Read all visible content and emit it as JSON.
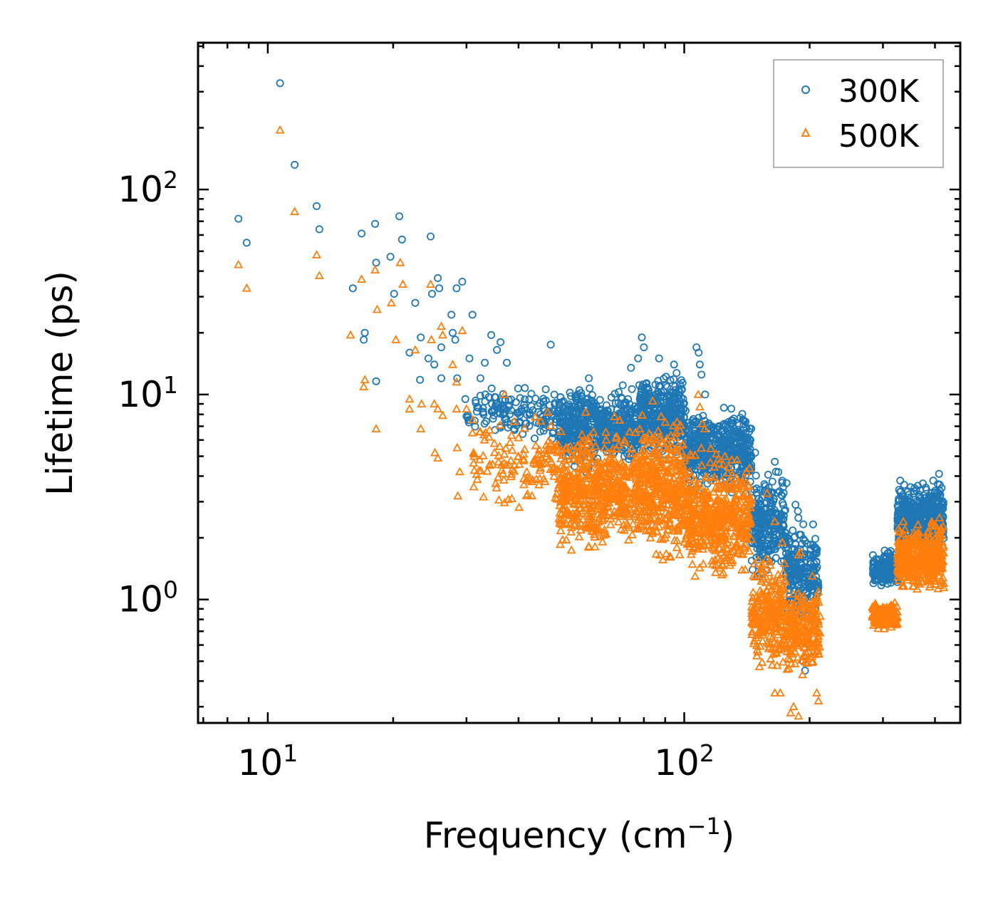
{
  "chart_data": {
    "type": "scatter",
    "title": "",
    "xlabel": "Frequency (cm⁻¹)",
    "ylabel": "Lifetime (ps)",
    "xscale": "log",
    "yscale": "log",
    "xlim": [
      6.8,
      460
    ],
    "ylim": [
      0.25,
      520
    ],
    "xticks": [
      {
        "value": 10,
        "base": "10",
        "exp": "1"
      },
      {
        "value": 100,
        "base": "10",
        "exp": "2"
      }
    ],
    "yticks": [
      {
        "value": 1,
        "base": "10",
        "exp": "0"
      },
      {
        "value": 10,
        "base": "10",
        "exp": "1"
      },
      {
        "value": 100,
        "base": "10",
        "exp": "2"
      }
    ],
    "legend": {
      "position": "top-right"
    },
    "colors": {
      "300K": "#1f77b4",
      "500K": "#ff7f0e"
    },
    "series": [
      {
        "name": "300K",
        "marker": "circle",
        "color": "#1f77b4",
        "points": [
          [
            8.5,
            72
          ],
          [
            8.9,
            55
          ],
          [
            10.7,
            330
          ],
          [
            11.6,
            132
          ],
          [
            13.1,
            83
          ],
          [
            13.3,
            64
          ],
          [
            16,
            33
          ],
          [
            16.8,
            61
          ],
          [
            17.1,
            20
          ],
          [
            17,
            18.5
          ],
          [
            18.2,
            11.6
          ],
          [
            18.1,
            68
          ],
          [
            18.2,
            44
          ],
          [
            19.7,
            47
          ],
          [
            20.1,
            31
          ],
          [
            20.7,
            74
          ],
          [
            21,
            57
          ],
          [
            21.9,
            16
          ],
          [
            22.6,
            28
          ],
          [
            23.3,
            19
          ],
          [
            23.2,
            11.8
          ],
          [
            24.3,
            15
          ],
          [
            24.6,
            59
          ],
          [
            24.8,
            31
          ],
          [
            25.1,
            14
          ],
          [
            25.6,
            37
          ],
          [
            25.8,
            33
          ],
          [
            26.1,
            12
          ],
          [
            26.1,
            17
          ],
          [
            27.6,
            24.5
          ],
          [
            27.8,
            20
          ],
          [
            28.2,
            18.5
          ],
          [
            28.5,
            12
          ],
          [
            28.4,
            33
          ],
          [
            29.3,
            35.5
          ],
          [
            29.8,
            9.5
          ],
          [
            30.5,
            15
          ],
          [
            31,
            24.5
          ],
          [
            31.6,
            9.1
          ],
          [
            32.4,
            12
          ],
          [
            33.2,
            14.3
          ],
          [
            34.4,
            19.5
          ],
          [
            35.5,
            16.5
          ],
          [
            36.2,
            18
          ],
          [
            37.5,
            14.3
          ]
        ],
        "clusters": [
          {
            "x": [
              30,
              50
            ],
            "y": [
              5.5,
              12
            ],
            "n": 140
          },
          {
            "x": [
              50,
              78
            ],
            "y": [
              4,
              12
            ],
            "n": 520
          },
          {
            "x": [
              78,
              100
            ],
            "y": [
              4.5,
              14
            ],
            "n": 380
          },
          {
            "x": [
              100,
              145
            ],
            "y": [
              3,
              9.5
            ],
            "n": 480
          },
          {
            "x": [
              145,
              175
            ],
            "y": [
              1.2,
              4.5
            ],
            "n": 230
          },
          {
            "x": [
              175,
              210
            ],
            "y": [
              0.7,
              2.5
            ],
            "n": 230
          },
          {
            "x": [
              283,
              325
            ],
            "y": [
              1.1,
              1.8
            ],
            "n": 180
          },
          {
            "x": [
              325,
              420
            ],
            "y": [
              1.6,
              4
            ],
            "n": 420
          }
        ],
        "extra_points": [
          [
            47.8,
            17.5
          ],
          [
            56,
            10.5
          ],
          [
            59,
            12
          ],
          [
            74.5,
            13.5
          ],
          [
            77.5,
            15
          ],
          [
            79.1,
            19
          ],
          [
            80,
            17
          ],
          [
            87,
            15
          ],
          [
            94.5,
            14
          ],
          [
            107,
            17
          ],
          [
            108.3,
            16
          ],
          [
            109,
            14
          ],
          [
            110,
            12.5
          ],
          [
            112.2,
            10
          ],
          [
            130,
            7.2
          ],
          [
            140,
            6.2
          ],
          [
            148,
            5.2
          ],
          [
            165,
            4.7
          ],
          [
            166,
            4.2
          ],
          [
            176,
            3.7
          ],
          [
            185,
            2.9
          ],
          [
            187.5,
            2.7
          ],
          [
            188,
            2.5
          ],
          [
            205,
            1.8
          ],
          [
            205,
            1.4
          ],
          [
            210,
            1.15
          ],
          [
            193,
            0.5
          ],
          [
            195,
            0.45
          ],
          [
            205,
            0.75
          ],
          [
            330,
            3.8
          ],
          [
            396,
            3.8
          ],
          [
            409,
            4.1
          ],
          [
            415,
            3.5
          ]
        ]
      },
      {
        "name": "500K",
        "marker": "triangle",
        "color": "#ff7f0e",
        "points": [
          [
            8.5,
            43
          ],
          [
            8.9,
            33
          ],
          [
            10.7,
            195
          ],
          [
            11.6,
            78
          ],
          [
            13.1,
            48
          ],
          [
            13.3,
            38
          ],
          [
            15.8,
            19.5
          ],
          [
            16.8,
            36.5
          ],
          [
            17.1,
            11.8
          ],
          [
            17,
            10.9
          ],
          [
            18.1,
            40.5
          ],
          [
            18.3,
            26
          ],
          [
            18.2,
            6.8
          ],
          [
            19.8,
            28
          ],
          [
            20.3,
            18.5
          ],
          [
            20.8,
            44
          ],
          [
            21.1,
            34.5
          ],
          [
            21.9,
            9.5
          ],
          [
            21.9,
            8.5
          ],
          [
            22.6,
            16.5
          ],
          [
            23.4,
            9
          ],
          [
            23.3,
            6.8
          ],
          [
            24.6,
            34.5
          ],
          [
            24.7,
            18.5
          ],
          [
            25.1,
            9
          ],
          [
            25.2,
            5.2
          ],
          [
            25.6,
            8.5
          ],
          [
            25.6,
            4.9
          ],
          [
            26.1,
            21.5
          ],
          [
            26.3,
            19.5
          ],
          [
            26.3,
            7.9
          ],
          [
            27.8,
            14
          ],
          [
            28.4,
            11.5
          ],
          [
            28.4,
            8.5
          ],
          [
            28.5,
            5.5
          ],
          [
            28.6,
            3.2
          ],
          [
            29.3,
            20.5
          ],
          [
            28.9,
            4.2
          ],
          [
            30,
            8.5
          ],
          [
            31,
            6.5
          ],
          [
            31.2,
            5.2
          ]
        ],
        "clusters": [
          {
            "x": [
              31,
              50
            ],
            "y": [
              2.5,
              9
            ],
            "n": 130
          },
          {
            "x": [
              50,
              78
            ],
            "y": [
              1.6,
              7.5
            ],
            "n": 560
          },
          {
            "x": [
              78,
              100
            ],
            "y": [
              1.3,
              9
            ],
            "n": 380
          },
          {
            "x": [
              100,
              145
            ],
            "y": [
              1.1,
              6
            ],
            "n": 500
          },
          {
            "x": [
              145,
              175
            ],
            "y": [
              0.4,
              1.8
            ],
            "n": 250
          },
          {
            "x": [
              175,
              212
            ],
            "y": [
              0.4,
              1.3
            ],
            "n": 220
          },
          {
            "x": [
              283,
              325
            ],
            "y": [
              0.7,
              1
            ],
            "n": 170
          },
          {
            "x": [
              325,
              420
            ],
            "y": [
              1,
              2.5
            ],
            "n": 420
          }
        ],
        "extra_points": [
          [
            37,
            10
          ],
          [
            47,
            8.2
          ],
          [
            58,
            8.2
          ],
          [
            68,
            7.8
          ],
          [
            70,
            7.5
          ],
          [
            84,
            9.3
          ],
          [
            88,
            7.8
          ],
          [
            108,
            10
          ],
          [
            109,
            8.7
          ],
          [
            110.5,
            7.2
          ],
          [
            112,
            6.8
          ],
          [
            130,
            4.8
          ],
          [
            141,
            4.2
          ],
          [
            158,
            3.3
          ],
          [
            165,
            2.4
          ],
          [
            172,
            1.9
          ],
          [
            188,
            1.65
          ],
          [
            190,
            1.7
          ],
          [
            180,
            0.28
          ],
          [
            183,
            0.3
          ],
          [
            188,
            0.27
          ],
          [
            203,
            1.3
          ],
          [
            208,
            0.35
          ],
          [
            210,
            0.32
          ],
          [
            165,
            0.35
          ],
          [
            170,
            0.35
          ],
          [
            336,
            2.4
          ],
          [
            393,
            2.4
          ],
          [
            410,
            2.5
          ],
          [
            414,
            2.2
          ],
          [
            415,
            1.75
          ]
        ]
      }
    ]
  }
}
